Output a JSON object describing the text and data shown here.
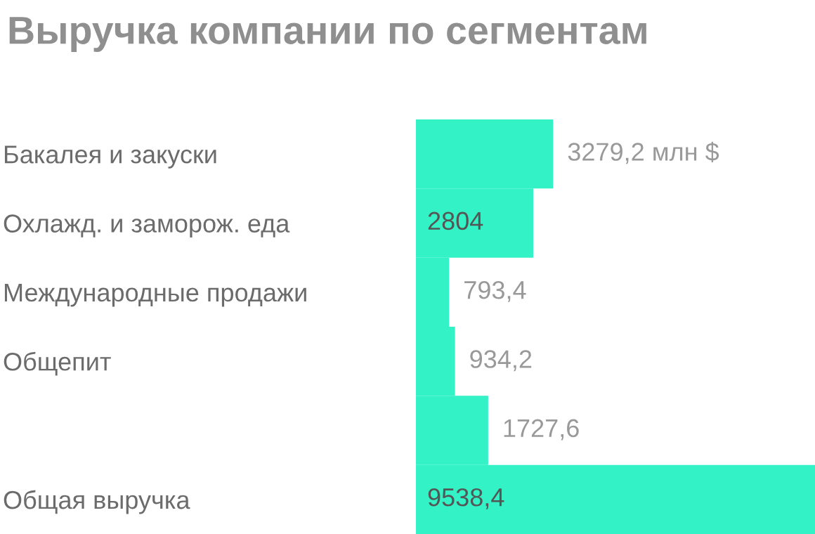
{
  "chart_data": {
    "type": "bar",
    "orientation": "horizontal",
    "title": "Выручка компании по сегментам",
    "categories": [
      "Бакалея и закуски",
      "Охлажд. и заморож. еда",
      "Международные продажи",
      "Общепит",
      null,
      "Общая выручка"
    ],
    "values": [
      3279.2,
      2804,
      793.4,
      934.2,
      1727.6,
      9538.4
    ],
    "value_labels": [
      "3279,2 млн $",
      "2804",
      "793,4",
      "934,2",
      "1727,6",
      "9538,4"
    ],
    "color": "#33f2c6",
    "xlim": [
      0,
      9538.4
    ],
    "tick_labels": "y",
    "grid": false,
    "legend": false
  }
}
